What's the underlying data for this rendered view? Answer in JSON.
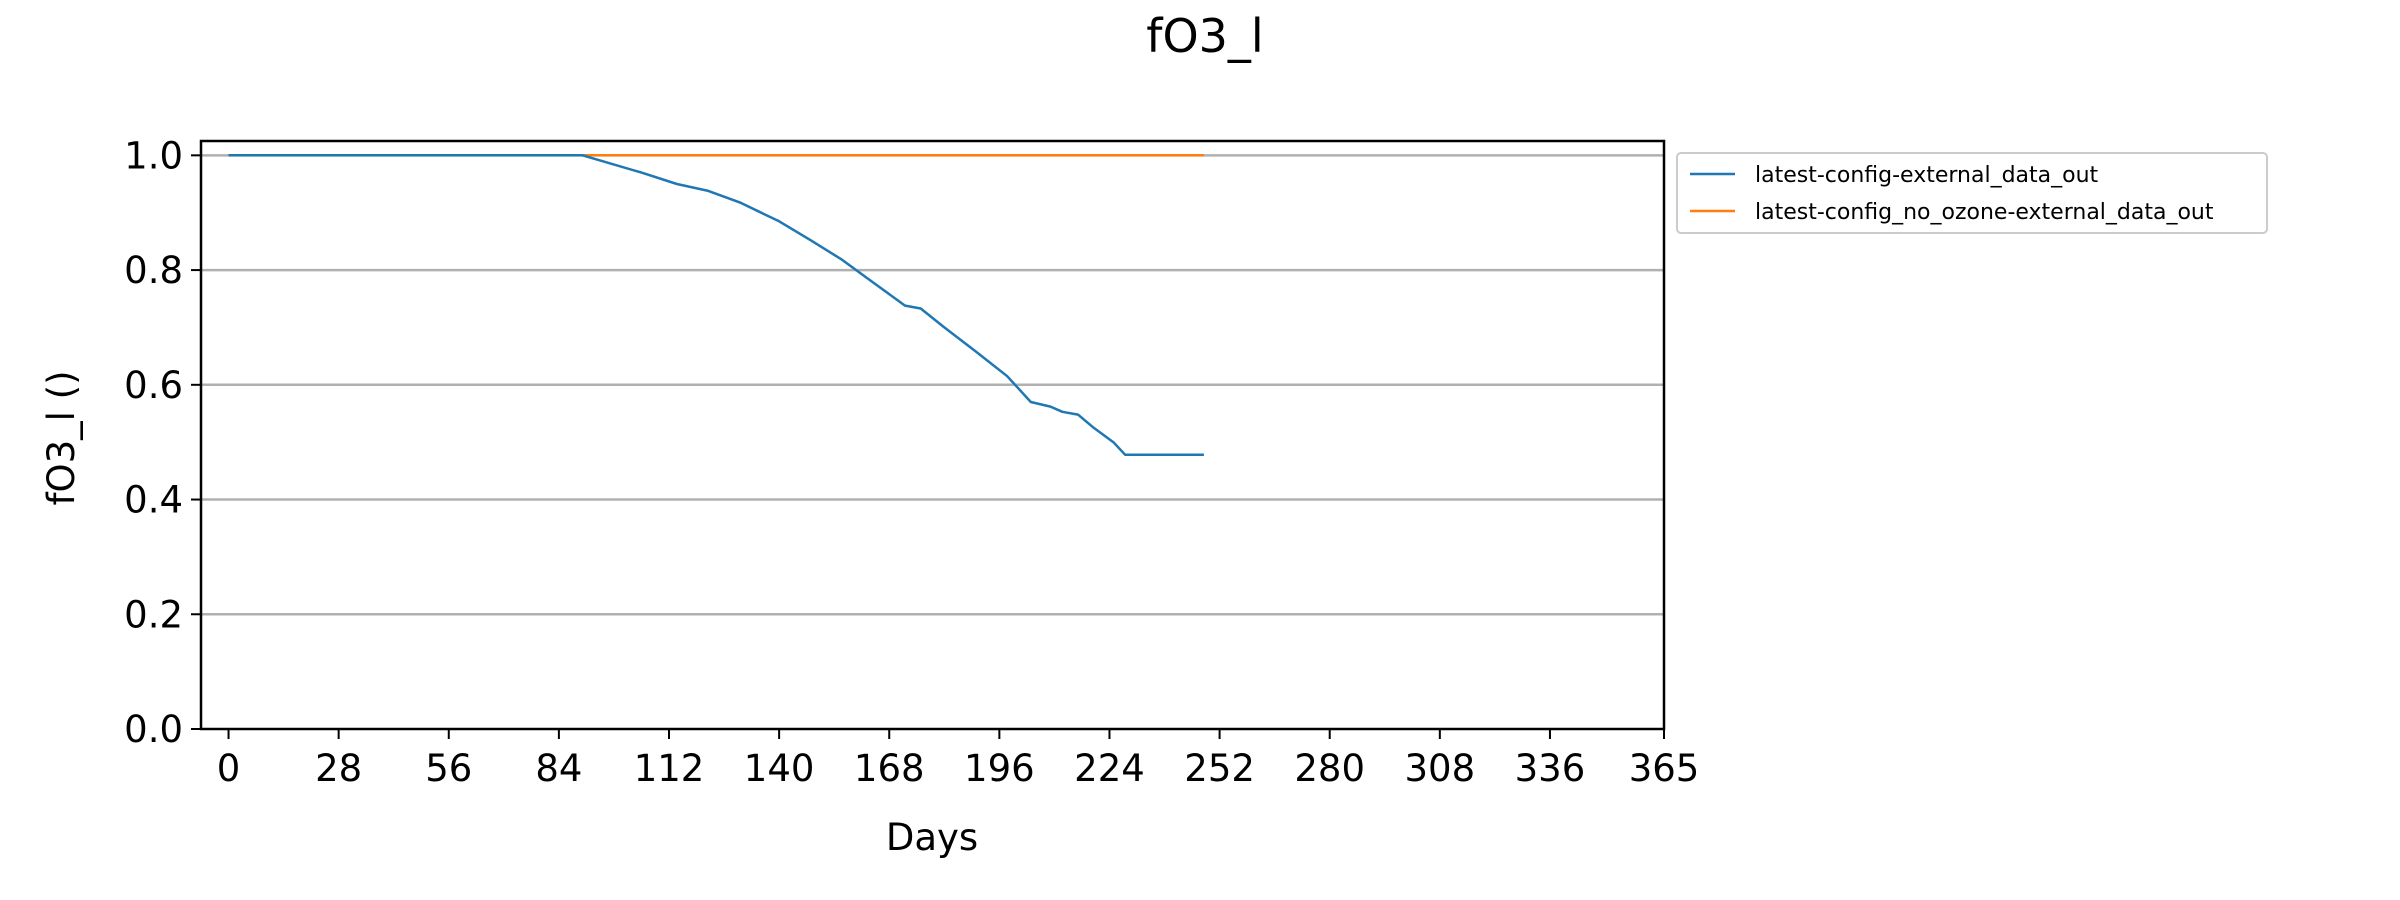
{
  "chart_data": {
    "type": "line",
    "title": "fO3_l",
    "xlabel": "Days",
    "ylabel": "fO3_l ()",
    "xlim": [
      -7,
      365
    ],
    "ylim": [
      0.0,
      1.025
    ],
    "x_ticks": [
      0,
      28,
      56,
      84,
      112,
      140,
      168,
      196,
      224,
      252,
      280,
      308,
      336,
      365
    ],
    "y_ticks": [
      0.0,
      0.2,
      0.4,
      0.6,
      0.8,
      1.0
    ],
    "y_tick_labels": [
      "0.0",
      "0.2",
      "0.4",
      "0.6",
      "0.8",
      "1.0"
    ],
    "grid": "horizontal",
    "legend_position": "outside-top-right",
    "series": [
      {
        "name": "latest-config-external_data_out",
        "color": "#1f77b4",
        "points": [
          [
            0,
            1.0
          ],
          [
            90,
            1.0
          ],
          [
            95,
            0.99
          ],
          [
            105,
            0.97
          ],
          [
            114,
            0.95
          ],
          [
            122,
            0.938
          ],
          [
            130,
            0.918
          ],
          [
            140,
            0.885
          ],
          [
            148,
            0.852
          ],
          [
            156,
            0.818
          ],
          [
            164,
            0.778
          ],
          [
            170,
            0.748
          ],
          [
            172,
            0.738
          ],
          [
            176,
            0.733
          ],
          [
            182,
            0.7
          ],
          [
            190,
            0.658
          ],
          [
            198,
            0.615
          ],
          [
            204,
            0.57
          ],
          [
            209,
            0.562
          ],
          [
            212,
            0.553
          ],
          [
            216,
            0.548
          ],
          [
            220,
            0.525
          ],
          [
            225,
            0.5
          ],
          [
            228,
            0.478
          ],
          [
            248,
            0.478
          ]
        ]
      },
      {
        "name": "latest-config_no_ozone-external_data_out",
        "color": "#ff7f0e",
        "points": [
          [
            0,
            1.0
          ],
          [
            248,
            1.0
          ]
        ]
      }
    ]
  }
}
